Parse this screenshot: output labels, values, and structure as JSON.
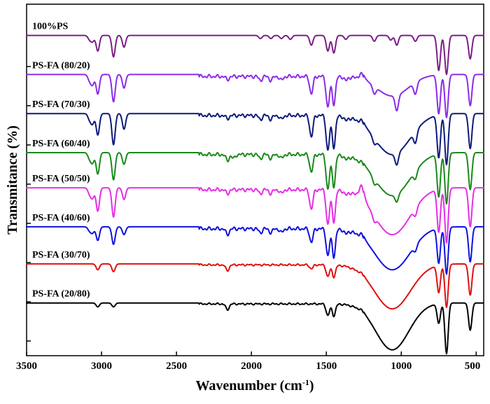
{
  "chart_data": {
    "type": "line",
    "title": "",
    "xlabel": "Wavenumber (cm",
    "xlabel_sup": "-1",
    "xlabel_close": ")",
    "ylabel": "Transmitance (%)",
    "xlim": [
      3500,
      450
    ],
    "x_reversed": true,
    "xticks": [
      3500,
      3000,
      2500,
      2000,
      1500,
      1000,
      500
    ],
    "ytick_count": 8,
    "ylim": [
      0,
      9
    ],
    "grid": false,
    "legend": "none (inline labels above each trace)",
    "series": [
      {
        "name": "100%PS",
        "color": "#7B1F86",
        "baseline": 8.2,
        "bands": [
          [
            3080,
            0.1
          ],
          [
            3060,
            0.15
          ],
          [
            3025,
            0.4
          ],
          [
            2920,
            0.55
          ],
          [
            2850,
            0.3
          ],
          [
            1940,
            0.08
          ],
          [
            1870,
            0.08
          ],
          [
            1800,
            0.08
          ],
          [
            1740,
            0.1
          ],
          [
            1600,
            0.25
          ],
          [
            1490,
            0.4
          ],
          [
            1450,
            0.45
          ],
          [
            1370,
            0.1
          ],
          [
            1180,
            0.15
          ],
          [
            1070,
            0.12
          ],
          [
            1030,
            0.25
          ],
          [
            906,
            0.15
          ],
          [
            750,
            0.9
          ],
          [
            698,
            1.0
          ],
          [
            540,
            0.6
          ]
        ],
        "broad": [],
        "fp": 0.0,
        "bump": 0.0
      },
      {
        "name": "PS-FA (80/20)",
        "color": "#8B2BE8",
        "baseline": 7.2,
        "bands": [
          [
            3080,
            0.15
          ],
          [
            3060,
            0.25
          ],
          [
            3025,
            0.5
          ],
          [
            2920,
            0.7
          ],
          [
            2850,
            0.35
          ],
          [
            2160,
            0.08
          ],
          [
            1940,
            0.1
          ],
          [
            1870,
            0.1
          ],
          [
            1800,
            0.1
          ],
          [
            1600,
            0.45
          ],
          [
            1490,
            0.8
          ],
          [
            1450,
            0.7
          ],
          [
            1370,
            0.1
          ],
          [
            1180,
            0.2
          ],
          [
            1030,
            0.4
          ],
          [
            906,
            0.3
          ],
          [
            750,
            1.0
          ],
          [
            698,
            1.1
          ],
          [
            540,
            0.8
          ]
        ],
        "broad": [
          [
            1060,
            0.55,
            110
          ]
        ],
        "fp": 0.1,
        "bump": 0.15
      },
      {
        "name": "PS-FA (70/30)",
        "color": "#0D1A7A",
        "baseline": 6.2,
        "bands": [
          [
            3080,
            0.15
          ],
          [
            3060,
            0.25
          ],
          [
            3025,
            0.55
          ],
          [
            2920,
            0.8
          ],
          [
            2850,
            0.4
          ],
          [
            2160,
            0.08
          ],
          [
            1940,
            0.1
          ],
          [
            1870,
            0.1
          ],
          [
            1800,
            0.1
          ],
          [
            1600,
            0.55
          ],
          [
            1490,
            0.9
          ],
          [
            1450,
            0.8
          ],
          [
            1370,
            0.1
          ],
          [
            1180,
            0.15
          ],
          [
            1030,
            0.3
          ],
          [
            906,
            0.3
          ],
          [
            750,
            1.1
          ],
          [
            698,
            1.3
          ],
          [
            540,
            0.9
          ]
        ],
        "broad": [
          [
            1060,
            1.05,
            120
          ]
        ],
        "fp": 0.1,
        "bump": 0.1
      },
      {
        "name": "PS-FA (60/40)",
        "color": "#1A8A1A",
        "baseline": 5.2,
        "bands": [
          [
            3080,
            0.15
          ],
          [
            3060,
            0.25
          ],
          [
            3025,
            0.55
          ],
          [
            2920,
            0.7
          ],
          [
            2850,
            0.3
          ],
          [
            2160,
            0.15
          ],
          [
            2120,
            0.1
          ],
          [
            1940,
            0.1
          ],
          [
            1870,
            0.1
          ],
          [
            1800,
            0.1
          ],
          [
            1600,
            0.45
          ],
          [
            1490,
            0.9
          ],
          [
            1450,
            0.8
          ],
          [
            1370,
            0.1
          ],
          [
            1180,
            0.15
          ],
          [
            1030,
            0.2
          ],
          [
            906,
            0.2
          ],
          [
            750,
            1.1
          ],
          [
            698,
            1.3
          ],
          [
            540,
            0.95
          ]
        ],
        "broad": [
          [
            1060,
            1.1,
            120
          ]
        ],
        "fp": 0.1,
        "bump": 0.05
      },
      {
        "name": "PS-FA (50/50)",
        "color": "#E62EE6",
        "baseline": 4.3,
        "bands": [
          [
            3080,
            0.15
          ],
          [
            3060,
            0.25
          ],
          [
            3025,
            0.6
          ],
          [
            2920,
            0.75
          ],
          [
            2850,
            0.3
          ],
          [
            2160,
            0.1
          ],
          [
            1940,
            0.1
          ],
          [
            1870,
            0.1
          ],
          [
            1800,
            0.1
          ],
          [
            1600,
            0.5
          ],
          [
            1490,
            0.9
          ],
          [
            1450,
            0.8
          ],
          [
            1370,
            0.1
          ],
          [
            1180,
            0.15
          ],
          [
            906,
            0.2
          ],
          [
            750,
            1.1
          ],
          [
            698,
            1.4
          ],
          [
            540,
            1.0
          ]
        ],
        "broad": [
          [
            1060,
            1.2,
            120
          ]
        ],
        "fp": 0.1,
        "bump": 0.35
      },
      {
        "name": "PS-FA (40/60)",
        "color": "#1010E0",
        "baseline": 3.3,
        "bands": [
          [
            3080,
            0.1
          ],
          [
            3060,
            0.15
          ],
          [
            3025,
            0.35
          ],
          [
            2920,
            0.45
          ],
          [
            2850,
            0.2
          ],
          [
            2160,
            0.15
          ],
          [
            1940,
            0.1
          ],
          [
            1870,
            0.1
          ],
          [
            1800,
            0.1
          ],
          [
            1600,
            0.35
          ],
          [
            1490,
            0.7
          ],
          [
            1450,
            0.7
          ],
          [
            1370,
            0.1
          ],
          [
            906,
            0.15
          ],
          [
            750,
            0.9
          ],
          [
            698,
            1.2
          ],
          [
            540,
            0.9
          ]
        ],
        "broad": [
          [
            1060,
            1.1,
            120
          ]
        ],
        "fp": 0.1,
        "bump": 0.1
      },
      {
        "name": "PS-FA (30/70)",
        "color": "#E01010",
        "baseline": 2.35,
        "bands": [
          [
            3025,
            0.15
          ],
          [
            2920,
            0.2
          ],
          [
            2160,
            0.15
          ],
          [
            1600,
            0.1
          ],
          [
            1490,
            0.3
          ],
          [
            1450,
            0.3
          ],
          [
            750,
            0.7
          ],
          [
            698,
            1.1
          ],
          [
            540,
            0.8
          ]
        ],
        "broad": [
          [
            1060,
            1.15,
            120
          ]
        ],
        "fp": 0.05,
        "bump": 0.05
      },
      {
        "name": "PS-FA (20/80)",
        "color": "#000000",
        "baseline": 1.35,
        "bands": [
          [
            3025,
            0.1
          ],
          [
            2920,
            0.1
          ],
          [
            2160,
            0.15
          ],
          [
            1490,
            0.3
          ],
          [
            1450,
            0.3
          ],
          [
            750,
            0.5
          ],
          [
            698,
            1.3
          ],
          [
            540,
            0.7
          ]
        ],
        "broad": [
          [
            1060,
            1.2,
            110
          ]
        ],
        "fp": 0.05,
        "bump": 0.05
      }
    ]
  }
}
